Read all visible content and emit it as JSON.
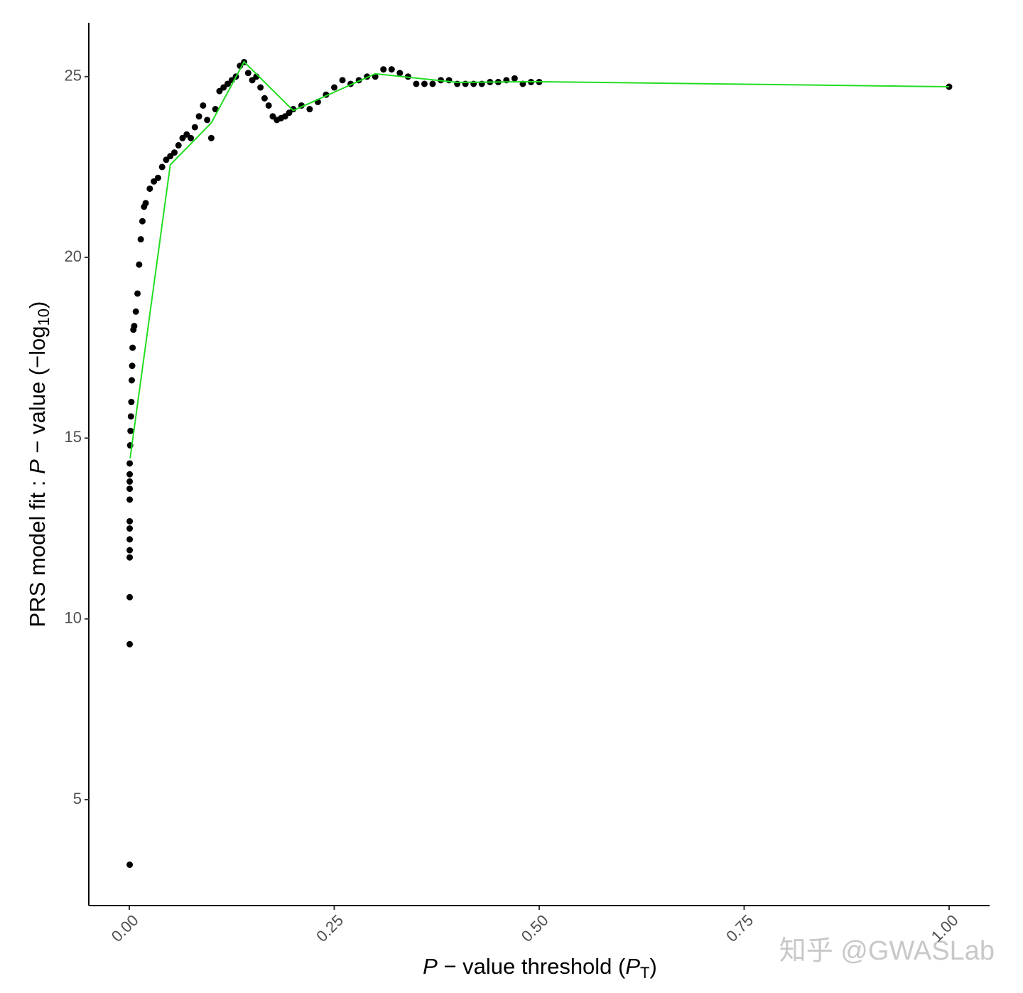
{
  "chart_data": {
    "type": "scatter",
    "xlabel": [
      "P",
      " − value threshold (",
      "P",
      "T",
      ")"
    ],
    "ylabel": [
      "PRS model fit :  ",
      "P",
      " − value (−log",
      "10",
      ")"
    ],
    "watermark": "知乎 @GWASLab",
    "xlim": [
      -0.0494,
      1.0494
    ],
    "ylim": [
      2.07,
      26.49
    ],
    "xticks": [
      {
        "value": 0,
        "label": "0.00"
      },
      {
        "value": 0.25,
        "label": "0.25"
      },
      {
        "value": 0.5,
        "label": "0.50"
      },
      {
        "value": 0.75,
        "label": "0.75"
      },
      {
        "value": 1,
        "label": "1.00"
      }
    ],
    "yticks": [
      5,
      10,
      15,
      20,
      25
    ],
    "grid": false,
    "series": [
      {
        "color": "#000000",
        "x": [
          0.0005,
          0.0005,
          0.0005,
          0.0005,
          0.0005,
          0.0005,
          0.0005,
          0.0005,
          0.0005,
          0.0005,
          0.0005,
          0.0005,
          0.0005,
          0.001,
          0.0015,
          0.002,
          0.0025,
          0.003,
          0.0035,
          0.004,
          0.005,
          0.006,
          0.008,
          0.01,
          0.012,
          0.014,
          0.016,
          0.018,
          0.02,
          0.025,
          0.03,
          0.035,
          0.04,
          0.045,
          0.05,
          0.055,
          0.06,
          0.065,
          0.07,
          0.075,
          0.08,
          0.085,
          0.09,
          0.095,
          0.1,
          0.105,
          0.11,
          0.115,
          0.12,
          0.125,
          0.13,
          0.135,
          0.14,
          0.145,
          0.15,
          0.155,
          0.16,
          0.165,
          0.17,
          0.175,
          0.18,
          0.185,
          0.19,
          0.195,
          0.2,
          0.21,
          0.22,
          0.23,
          0.24,
          0.25,
          0.26,
          0.27,
          0.28,
          0.29,
          0.3,
          0.31,
          0.32,
          0.33,
          0.34,
          0.35,
          0.36,
          0.37,
          0.38,
          0.39,
          0.4,
          0.41,
          0.42,
          0.43,
          0.44,
          0.45,
          0.46,
          0.47,
          0.48,
          0.49,
          0.5,
          1.0
        ],
        "values": [
          3.2,
          9.3,
          10.6,
          11.7,
          11.9,
          12.2,
          12.5,
          12.7,
          13.3,
          13.6,
          13.8,
          14.0,
          14.3,
          14.8,
          15.2,
          15.6,
          16.0,
          16.6,
          17.0,
          17.5,
          18.0,
          18.1,
          18.5,
          19.0,
          19.8,
          20.5,
          21.0,
          21.4,
          21.5,
          21.9,
          22.1,
          22.2,
          22.5,
          22.7,
          22.8,
          22.9,
          23.1,
          23.3,
          23.4,
          23.3,
          23.6,
          23.9,
          24.2,
          23.8,
          23.3,
          24.1,
          24.6,
          24.7,
          24.8,
          24.9,
          25.0,
          25.3,
          25.4,
          25.1,
          24.9,
          25.0,
          24.7,
          24.4,
          24.2,
          23.9,
          23.8,
          23.85,
          23.9,
          24.0,
          24.1,
          24.2,
          24.1,
          24.3,
          24.5,
          24.7,
          24.9,
          24.8,
          24.9,
          25.0,
          25.0,
          25.2,
          25.2,
          25.1,
          25.0,
          24.8,
          24.8,
          24.8,
          24.9,
          24.9,
          24.8,
          24.8,
          24.8,
          24.8,
          24.85,
          24.85,
          24.9,
          24.95,
          24.8,
          24.85,
          24.85,
          24.72
        ]
      },
      {
        "type": "line",
        "color": "#22dd22",
        "x": [
          0.001,
          0.05,
          0.1,
          0.14,
          0.2,
          0.3,
          0.4,
          0.5,
          1.0
        ],
        "values": [
          14.44,
          22.56,
          23.72,
          25.41,
          24.06,
          25.08,
          24.84,
          24.86,
          24.72
        ]
      }
    ]
  }
}
